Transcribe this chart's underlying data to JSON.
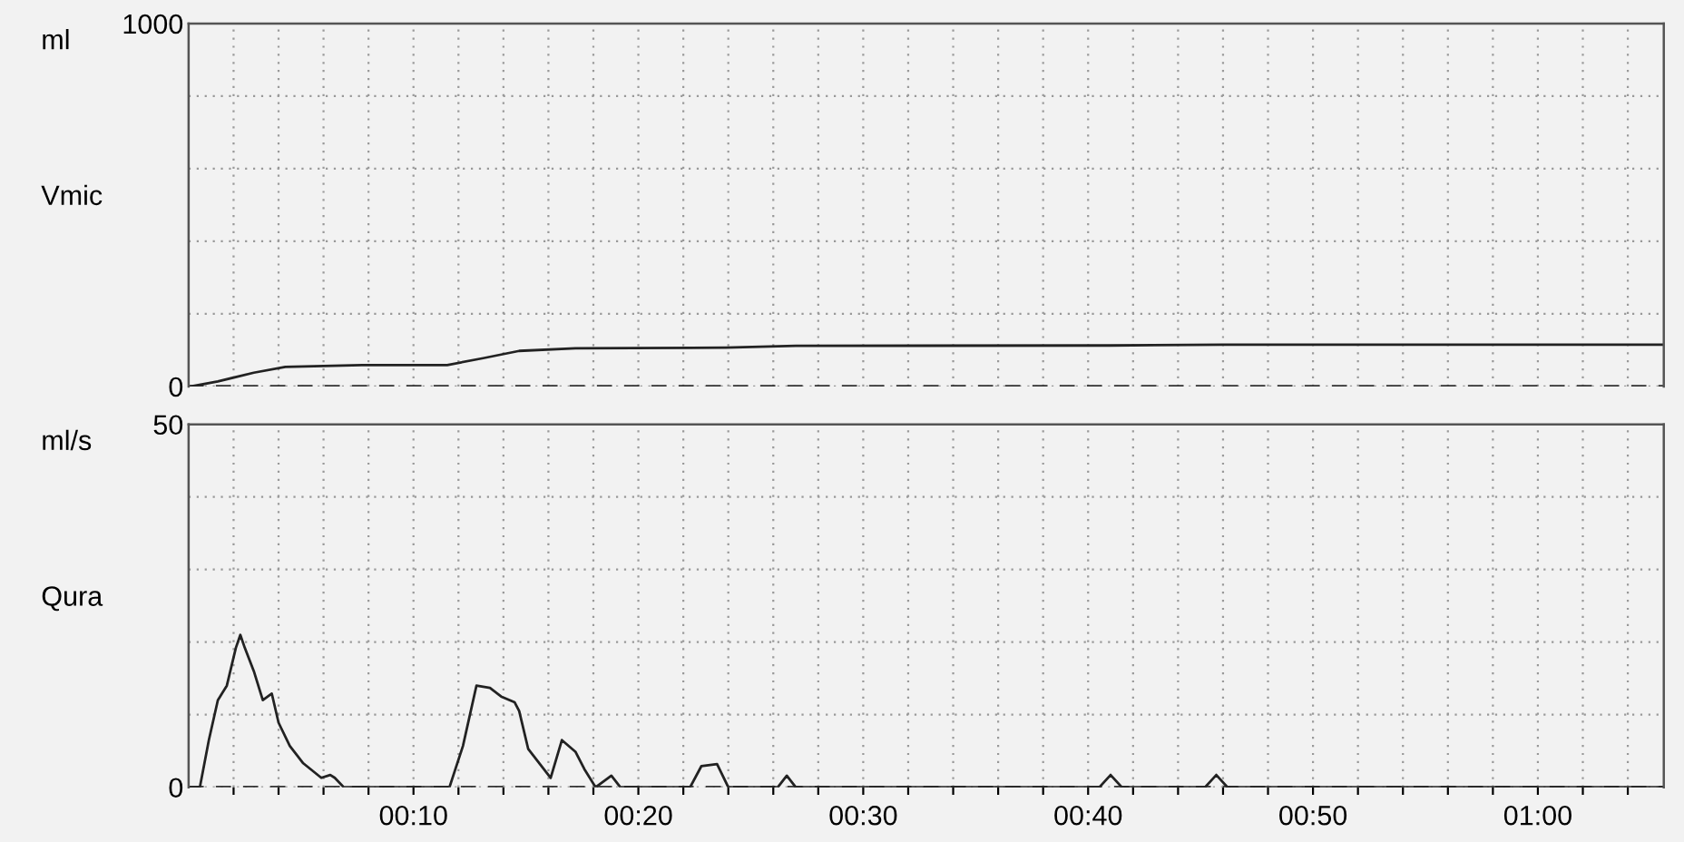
{
  "chart_data": [
    {
      "type": "line",
      "ylabel": "Vmic",
      "annotations": [
        "ml"
      ],
      "x": [
        0.1,
        1.3,
        2.9,
        4.3,
        7.7,
        11.5,
        13.1,
        14.7,
        17.2,
        23.9,
        27,
        41,
        46,
        65.6
      ],
      "series": [
        {
          "color": "#222222",
          "values": [
            0,
            14,
            38,
            54,
            59,
            59,
            78,
            98,
            105,
            107,
            112,
            113,
            115,
            115
          ]
        }
      ],
      "xlim": [
        0,
        65.6
      ],
      "ylim": [
        0,
        1000
      ],
      "xticks": [
        {
          "value": 2,
          "label": null
        },
        {
          "value": 4,
          "label": null
        },
        {
          "value": 6,
          "label": null
        },
        {
          "value": 8,
          "label": null
        },
        {
          "value": 10,
          "label": null
        },
        {
          "value": 12,
          "label": null
        },
        {
          "value": 14,
          "label": null
        },
        {
          "value": 16,
          "label": null
        },
        {
          "value": 18,
          "label": null
        },
        {
          "value": 20,
          "label": null
        },
        {
          "value": 22,
          "label": null
        },
        {
          "value": 24,
          "label": null
        },
        {
          "value": 26,
          "label": null
        },
        {
          "value": 28,
          "label": null
        },
        {
          "value": 30,
          "label": null
        },
        {
          "value": 32,
          "label": null
        },
        {
          "value": 34,
          "label": null
        },
        {
          "value": 36,
          "label": null
        },
        {
          "value": 38,
          "label": null
        },
        {
          "value": 40,
          "label": null
        },
        {
          "value": 42,
          "label": null
        },
        {
          "value": 44,
          "label": null
        },
        {
          "value": 46,
          "label": null
        },
        {
          "value": 48,
          "label": null
        },
        {
          "value": 50,
          "label": null
        },
        {
          "value": 52,
          "label": null
        },
        {
          "value": 54,
          "label": null
        },
        {
          "value": 56,
          "label": null
        },
        {
          "value": 58,
          "label": null
        },
        {
          "value": 60,
          "label": null
        },
        {
          "value": 62,
          "label": null
        },
        {
          "value": 64,
          "label": null
        }
      ],
      "yticks": [
        0,
        {
          "value": 200,
          "label": null
        },
        {
          "value": 400,
          "label": null
        },
        {
          "value": 600,
          "label": null
        },
        {
          "value": 800,
          "label": null
        },
        1000
      ],
      "tick_labels": "y",
      "grid": true,
      "marker": "none",
      "line_style": "solid",
      "ref_lines": [
        {
          "axis": "y",
          "value": 0,
          "line_style": "dashed",
          "color": "#333333"
        }
      ]
    },
    {
      "type": "line",
      "ylabel": "Qura",
      "annotations": [
        "ml/s"
      ],
      "x": [
        0,
        0.5,
        0.9,
        1.3,
        1.7,
        2.1,
        2.3,
        2.5,
        2.9,
        3.3,
        3.7,
        4.0,
        4.5,
        5.1,
        5.9,
        6.3,
        6.5,
        6.9,
        11.6,
        12.2,
        12.8,
        13.4,
        13.9,
        14.5,
        14.7,
        15.1,
        16.1,
        16.6,
        17.2,
        17.6,
        18.1,
        18.8,
        19.2,
        22.3,
        22.8,
        23.5,
        24.0,
        26.2,
        26.6,
        27.0,
        40.5,
        41.0,
        41.5,
        45.2,
        45.7,
        46.2,
        65.6
      ],
      "series": [
        {
          "color": "#222222",
          "values": [
            0,
            0,
            6.5,
            12,
            14,
            19.2,
            21,
            19.2,
            16,
            12,
            12.9,
            8.9,
            5.7,
            3.3,
            1.3,
            1.7,
            1.3,
            0,
            0,
            5.7,
            14,
            13.7,
            12.5,
            11.7,
            10.5,
            5.3,
            1.3,
            6.5,
            4.9,
            2.5,
            0,
            1.6,
            0,
            0,
            2.9,
            3.2,
            0,
            0,
            1.6,
            0,
            0,
            1.7,
            0,
            0,
            1.7,
            0,
            0
          ]
        }
      ],
      "xlim": [
        0,
        65.6
      ],
      "ylim": [
        0,
        50
      ],
      "xticks": [
        {
          "value": 2,
          "label": null
        },
        {
          "value": 4,
          "label": null
        },
        {
          "value": 6,
          "label": null
        },
        {
          "value": 8,
          "label": null
        },
        {
          "value": 10,
          "label": "00:10"
        },
        {
          "value": 12,
          "label": null
        },
        {
          "value": 14,
          "label": null
        },
        {
          "value": 16,
          "label": null
        },
        {
          "value": 18,
          "label": null
        },
        {
          "value": 20,
          "label": "00:20"
        },
        {
          "value": 22,
          "label": null
        },
        {
          "value": 24,
          "label": null
        },
        {
          "value": 26,
          "label": null
        },
        {
          "value": 28,
          "label": null
        },
        {
          "value": 30,
          "label": "00:30"
        },
        {
          "value": 32,
          "label": null
        },
        {
          "value": 34,
          "label": null
        },
        {
          "value": 36,
          "label": null
        },
        {
          "value": 38,
          "label": null
        },
        {
          "value": 40,
          "label": "00:40"
        },
        {
          "value": 42,
          "label": null
        },
        {
          "value": 44,
          "label": null
        },
        {
          "value": 46,
          "label": null
        },
        {
          "value": 48,
          "label": null
        },
        {
          "value": 50,
          "label": "00:50"
        },
        {
          "value": 52,
          "label": null
        },
        {
          "value": 54,
          "label": null
        },
        {
          "value": 56,
          "label": null
        },
        {
          "value": 58,
          "label": null
        },
        {
          "value": 60,
          "label": "01:00"
        },
        {
          "value": 62,
          "label": null
        },
        {
          "value": 64,
          "label": null
        }
      ],
      "yticks": [
        0,
        {
          "value": 10,
          "label": null
        },
        {
          "value": 20,
          "label": null
        },
        {
          "value": 30,
          "label": null
        },
        {
          "value": 40,
          "label": null
        },
        50
      ],
      "grid": true,
      "marker": "none",
      "line_style": "solid",
      "ref_lines": [
        {
          "axis": "y",
          "value": 0,
          "line_style": "dashed",
          "color": "#333333"
        }
      ]
    }
  ]
}
